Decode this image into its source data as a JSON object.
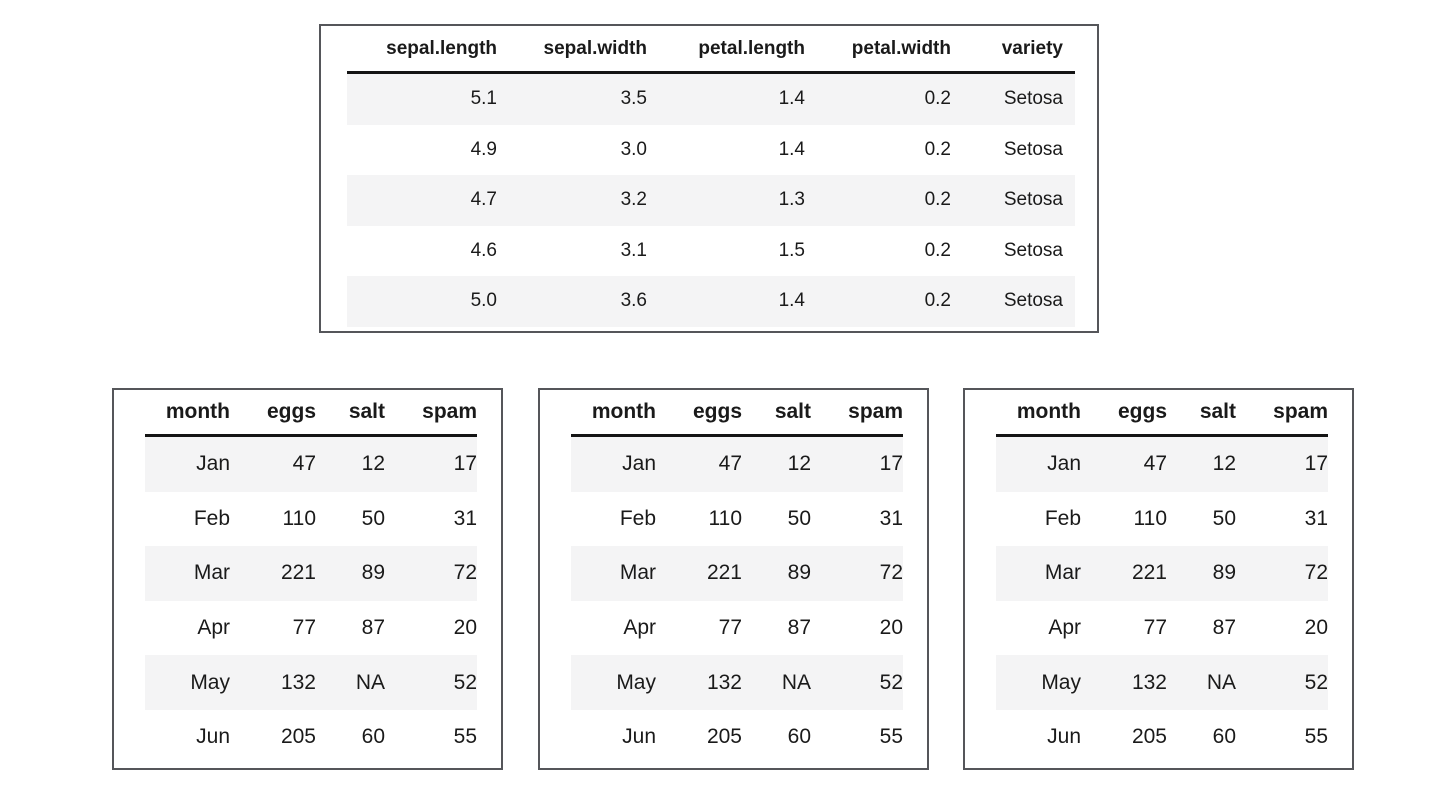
{
  "colors": {
    "background": "#ffffff",
    "box_border": "#55565a",
    "header_rule": "#141414",
    "row_stripe": "#f4f4f5",
    "text": "#1a1a1a"
  },
  "chart_data": [
    {
      "type": "table",
      "columns": [
        "sepal.length",
        "sepal.width",
        "petal.length",
        "petal.width",
        "variety"
      ],
      "rows": [
        [
          "5.1",
          "3.5",
          "1.4",
          "0.2",
          "Setosa"
        ],
        [
          "4.9",
          "3.0",
          "1.4",
          "0.2",
          "Setosa"
        ],
        [
          "4.7",
          "3.2",
          "1.3",
          "0.2",
          "Setosa"
        ],
        [
          "4.6",
          "3.1",
          "1.5",
          "0.2",
          "Setosa"
        ],
        [
          "5.0",
          "3.6",
          "1.4",
          "0.2",
          "Setosa"
        ]
      ],
      "layout": {
        "zebra_striping": true,
        "stripe_rows": "odd",
        "value_alignment": "right"
      }
    },
    {
      "type": "table",
      "columns": [
        "month",
        "eggs",
        "salt",
        "spam"
      ],
      "rows": [
        [
          "Jan",
          "47",
          "12",
          "17"
        ],
        [
          "Feb",
          "110",
          "50",
          "31"
        ],
        [
          "Mar",
          "221",
          "89",
          "72"
        ],
        [
          "Apr",
          "77",
          "87",
          "20"
        ],
        [
          "May",
          "132",
          "NA",
          "52"
        ],
        [
          "Jun",
          "205",
          "60",
          "55"
        ]
      ],
      "layout": {
        "zebra_striping": true,
        "stripe_rows": "odd",
        "value_alignment": "right"
      }
    },
    {
      "type": "table",
      "columns": [
        "month",
        "eggs",
        "salt",
        "spam"
      ],
      "rows": [
        [
          "Jan",
          "47",
          "12",
          "17"
        ],
        [
          "Feb",
          "110",
          "50",
          "31"
        ],
        [
          "Mar",
          "221",
          "89",
          "72"
        ],
        [
          "Apr",
          "77",
          "87",
          "20"
        ],
        [
          "May",
          "132",
          "NA",
          "52"
        ],
        [
          "Jun",
          "205",
          "60",
          "55"
        ]
      ],
      "layout": {
        "zebra_striping": true,
        "stripe_rows": "odd",
        "value_alignment": "right"
      }
    },
    {
      "type": "table",
      "columns": [
        "month",
        "eggs",
        "salt",
        "spam"
      ],
      "rows": [
        [
          "Jan",
          "47",
          "12",
          "17"
        ],
        [
          "Feb",
          "110",
          "50",
          "31"
        ],
        [
          "Mar",
          "221",
          "89",
          "72"
        ],
        [
          "Apr",
          "77",
          "87",
          "20"
        ],
        [
          "May",
          "132",
          "NA",
          "52"
        ],
        [
          "Jun",
          "205",
          "60",
          "55"
        ]
      ],
      "layout": {
        "zebra_striping": true,
        "stripe_rows": "odd",
        "value_alignment": "right"
      }
    }
  ]
}
